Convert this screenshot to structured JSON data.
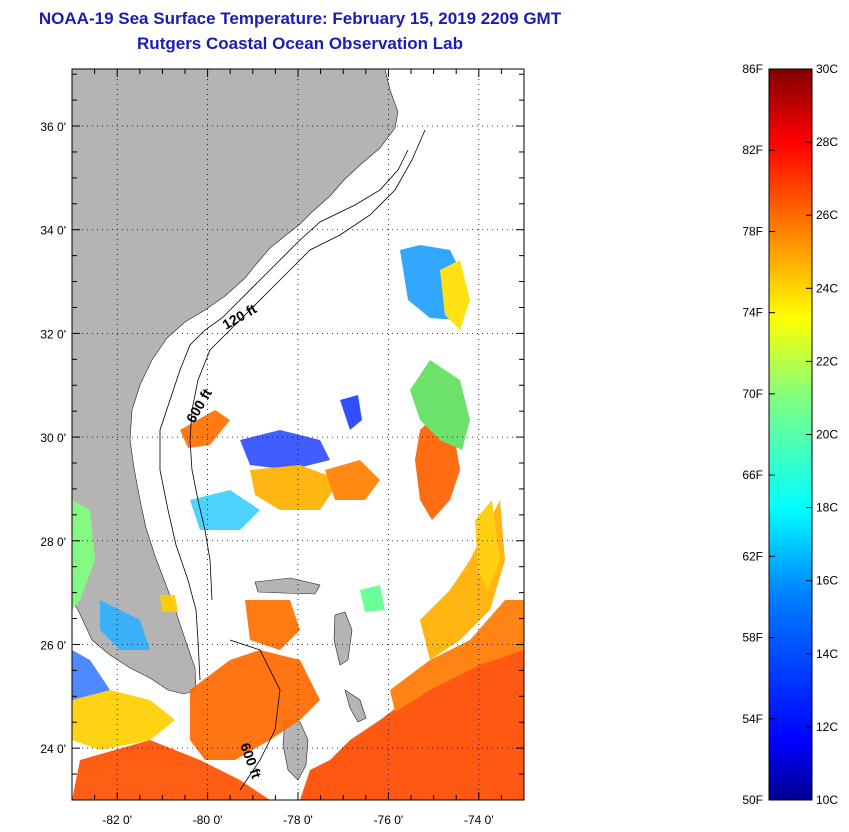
{
  "header": {
    "title": "NOAA-19 Sea Surface Temperature:  February 15, 2019 2209 GMT",
    "subtitle": "Rutgers Coastal Ocean Observation Lab"
  },
  "map": {
    "latitude_labels": [
      "36 0'",
      "34 0'",
      "32 0'",
      "30 0'",
      "28 0'",
      "26 0'",
      "24 0'"
    ],
    "longitude_labels": [
      "-82 0'",
      "-80 0'",
      "-78 0'",
      "-76 0'",
      "-74 0'"
    ],
    "latitude_values": [
      36,
      34,
      32,
      30,
      28,
      26,
      24
    ],
    "longitude_values": [
      -82,
      -80,
      -78,
      -76,
      -74
    ],
    "extent": {
      "lon_min": -83,
      "lon_max": -73,
      "lat_min": 23,
      "lat_max": 37.1
    },
    "contour_labels": {
      "c120": "120 ft",
      "c600a": "600 ft",
      "c600b": "600 ft"
    },
    "land_color": "#b4b4b4",
    "ocean_color": "#ffffff"
  },
  "colorbar": {
    "f_labels": [
      "86F",
      "82F",
      "78F",
      "74F",
      "70F",
      "66F",
      "62F",
      "58F",
      "54F",
      "50F"
    ],
    "c_labels": [
      "30C",
      "28C",
      "26C",
      "24C",
      "22C",
      "20C",
      "18C",
      "16C",
      "14C",
      "12C",
      "10C"
    ],
    "range_c": [
      10,
      30
    ],
    "colors": [
      "#00008f",
      "#0000ff",
      "#0080ff",
      "#00ffff",
      "#80ff80",
      "#ffff00",
      "#ff8000",
      "#ff0000",
      "#800000"
    ]
  }
}
